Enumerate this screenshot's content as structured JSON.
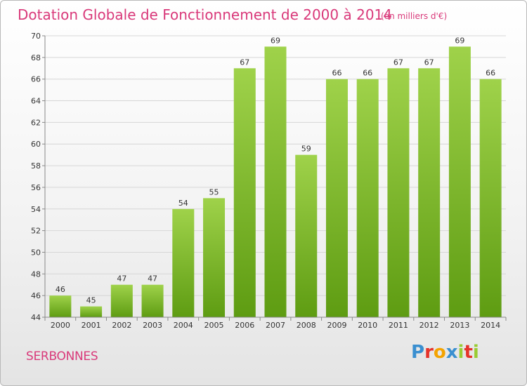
{
  "header": {
    "title": "Dotation Globale de Fonctionnement de 2000 à 2014",
    "unit": "(en milliers d'€)"
  },
  "footer": {
    "commune": "SERBONNES",
    "logo": [
      "P",
      "r",
      "o",
      "x",
      "i",
      "t",
      "i"
    ],
    "logo_colors": [
      "#3a8fd0",
      "#e6332a",
      "#f4a300",
      "#3a8fd0",
      "#9c3",
      "#e6332a",
      "#9c3"
    ]
  },
  "colors": {
    "title": "#d9397a",
    "bar_top": "#9fd24a",
    "bar_bottom": "#5e9c12",
    "grid": "#d6d6d6"
  },
  "chart_data": {
    "type": "bar",
    "categories": [
      "2000",
      "2001",
      "2002",
      "2003",
      "2004",
      "2005",
      "2006",
      "2007",
      "2008",
      "2009",
      "2010",
      "2011",
      "2012",
      "2013",
      "2014"
    ],
    "values": [
      46,
      45,
      47,
      47,
      54,
      55,
      67,
      69,
      59,
      66,
      66,
      67,
      67,
      69,
      66
    ],
    "ylim": [
      44,
      70
    ],
    "yticks": [
      44,
      46,
      48,
      50,
      52,
      54,
      56,
      58,
      60,
      62,
      64,
      66,
      68,
      70
    ],
    "grid": true
  }
}
